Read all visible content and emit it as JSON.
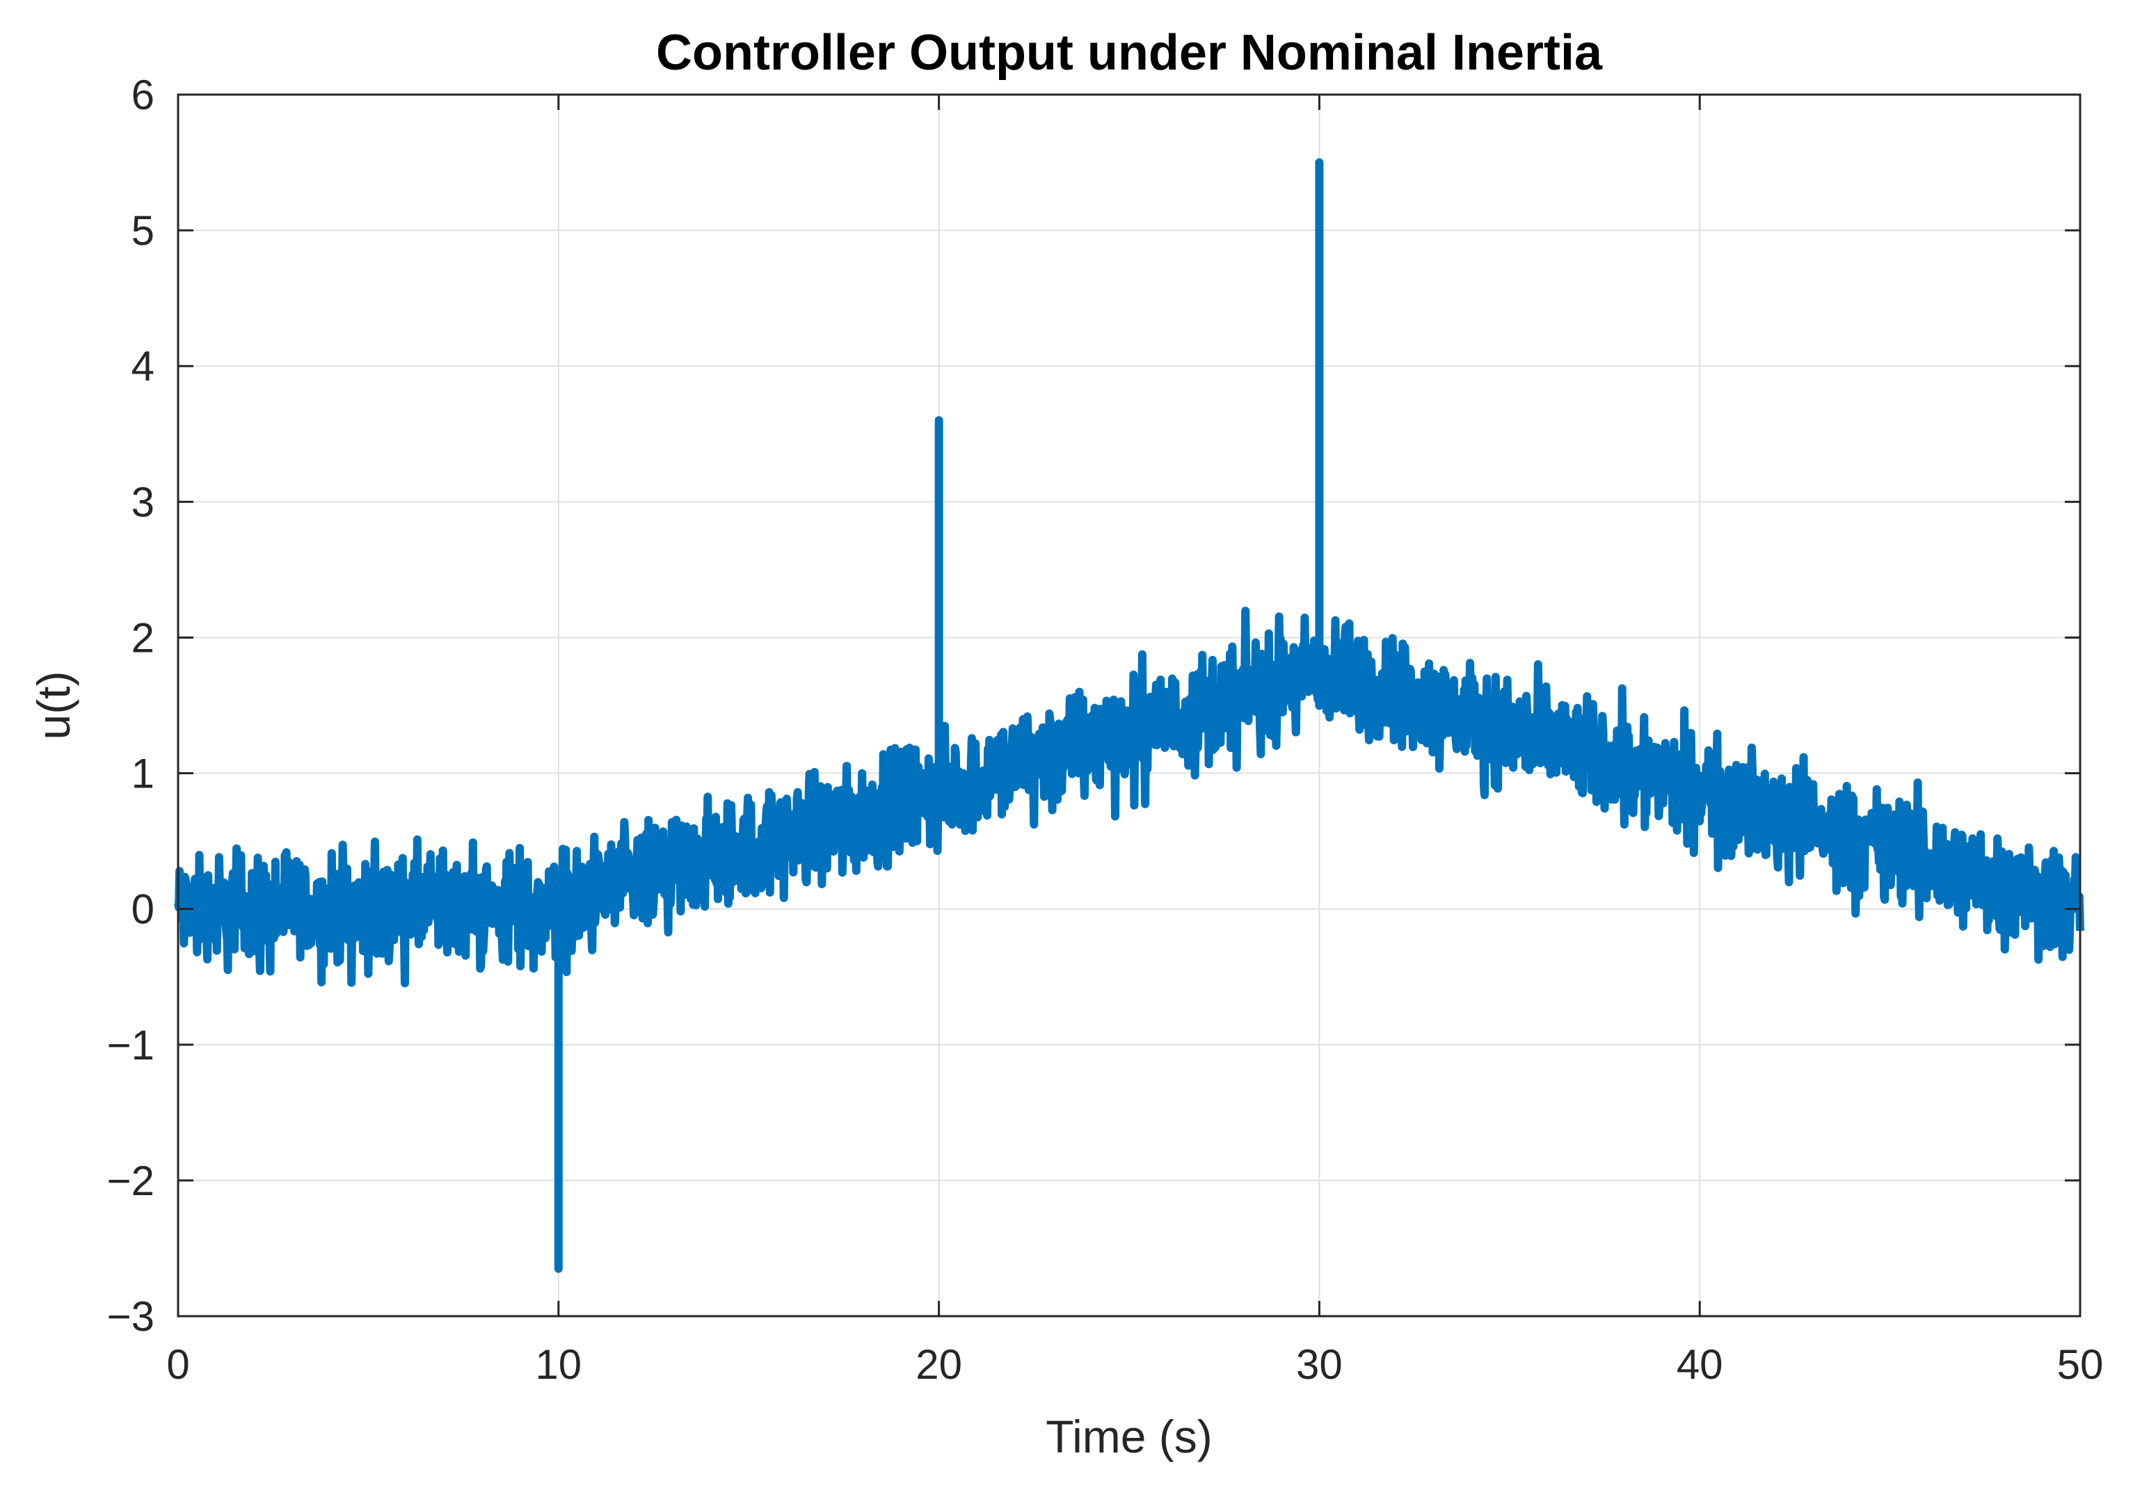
{
  "chart_data": {
    "type": "line",
    "title": "Controller Output under Nominal Inertia",
    "xlabel": "Time (s)",
    "ylabel": "u(t)",
    "xlim": [
      0,
      50
    ],
    "ylim": [
      -3,
      6
    ],
    "xticks": [
      0,
      10,
      20,
      30,
      40,
      50
    ],
    "xtick_labels": [
      "0",
      "10",
      "20",
      "30",
      "40",
      "50"
    ],
    "yticks": [
      -3,
      -2,
      -1,
      0,
      1,
      2,
      3,
      4,
      5,
      6
    ],
    "ytick_labels": [
      "−3",
      "−2",
      "−1",
      "0",
      "1",
      "2",
      "3",
      "4",
      "5",
      "6"
    ],
    "grid": true,
    "legend": "none",
    "line_color": "#0072BD",
    "series": [
      {
        "baseline": {
          "t": [
            0,
            10,
            30,
            50
          ],
          "u": [
            0,
            0,
            1.75,
            0
          ]
        },
        "noise_amplitude": 0.45,
        "spikes": [
          {
            "t": 10,
            "u": -2.65
          },
          {
            "t": 20,
            "u": 3.6
          },
          {
            "t": 30,
            "u": 5.5
          }
        ]
      }
    ]
  }
}
